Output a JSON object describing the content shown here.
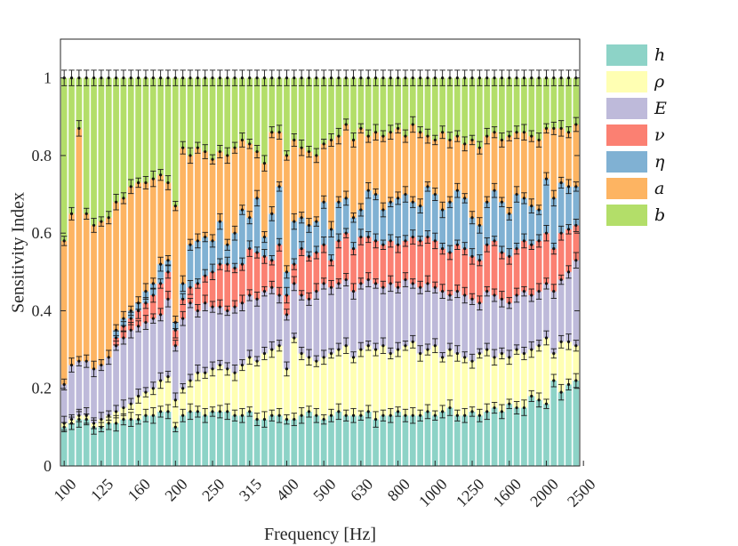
{
  "chart_data": {
    "type": "bar",
    "stacked": true,
    "title": "",
    "xlabel": "Frequency [Hz]",
    "ylabel": "Sensitivity Index",
    "ylim": [
      0,
      1.1
    ],
    "yticks": [
      0,
      0.2,
      0.4,
      0.6,
      0.8,
      1
    ],
    "ytick_labels": [
      "0",
      "0.2",
      "0.4",
      "0.6",
      "0.8",
      "1"
    ],
    "xtick_labels": [
      "100",
      "125",
      "160",
      "200",
      "250",
      "315",
      "400",
      "500",
      "630",
      "800",
      "1000",
      "1250",
      "1600",
      "2000",
      "2500"
    ],
    "bar_count": 70,
    "legend_position": "outside-right",
    "series": [
      {
        "name": "h",
        "color": "#8dd3c7",
        "cumulative_top": [
          0.1,
          0.11,
          0.12,
          0.12,
          0.1,
          0.1,
          0.11,
          0.11,
          0.12,
          0.12,
          0.12,
          0.13,
          0.13,
          0.14,
          0.14,
          0.1,
          0.13,
          0.14,
          0.14,
          0.13,
          0.14,
          0.14,
          0.14,
          0.13,
          0.13,
          0.14,
          0.12,
          0.12,
          0.13,
          0.13,
          0.12,
          0.12,
          0.13,
          0.14,
          0.13,
          0.12,
          0.13,
          0.14,
          0.13,
          0.13,
          0.13,
          0.14,
          0.12,
          0.13,
          0.13,
          0.14,
          0.13,
          0.13,
          0.13,
          0.14,
          0.13,
          0.14,
          0.15,
          0.13,
          0.13,
          0.14,
          0.13,
          0.14,
          0.15,
          0.14,
          0.16,
          0.15,
          0.15,
          0.18,
          0.17,
          0.16,
          0.22,
          0.19,
          0.21,
          0.22
        ]
      },
      {
        "name": "ρ",
        "color": "#ffffb3",
        "cumulative_top": [
          0.11,
          0.12,
          0.13,
          0.13,
          0.11,
          0.12,
          0.13,
          0.14,
          0.15,
          0.16,
          0.18,
          0.19,
          0.2,
          0.22,
          0.23,
          0.17,
          0.2,
          0.22,
          0.24,
          0.24,
          0.25,
          0.26,
          0.25,
          0.24,
          0.26,
          0.28,
          0.27,
          0.29,
          0.3,
          0.31,
          0.25,
          0.33,
          0.29,
          0.28,
          0.27,
          0.28,
          0.29,
          0.3,
          0.31,
          0.28,
          0.3,
          0.31,
          0.3,
          0.31,
          0.29,
          0.3,
          0.31,
          0.32,
          0.29,
          0.3,
          0.31,
          0.28,
          0.3,
          0.29,
          0.28,
          0.27,
          0.29,
          0.3,
          0.28,
          0.29,
          0.28,
          0.3,
          0.29,
          0.3,
          0.31,
          0.33,
          0.29,
          0.32,
          0.32,
          0.31
        ]
      },
      {
        "name": "E",
        "color": "#bebada",
        "cumulative_top": [
          0.21,
          0.26,
          0.27,
          0.27,
          0.25,
          0.26,
          0.28,
          0.31,
          0.33,
          0.35,
          0.36,
          0.37,
          0.38,
          0.39,
          0.43,
          0.31,
          0.38,
          0.42,
          0.4,
          0.42,
          0.41,
          0.41,
          0.4,
          0.41,
          0.42,
          0.44,
          0.43,
          0.45,
          0.46,
          0.44,
          0.39,
          0.47,
          0.44,
          0.43,
          0.45,
          0.47,
          0.46,
          0.47,
          0.48,
          0.45,
          0.47,
          0.48,
          0.47,
          0.46,
          0.47,
          0.46,
          0.48,
          0.47,
          0.46,
          0.47,
          0.46,
          0.45,
          0.44,
          0.45,
          0.44,
          0.43,
          0.42,
          0.45,
          0.44,
          0.43,
          0.42,
          0.44,
          0.45,
          0.44,
          0.45,
          0.47,
          0.45,
          0.48,
          0.5,
          0.53
        ]
      },
      {
        "name": "ν",
        "color": "#fb8072",
        "cumulative_top": [
          0.21,
          0.26,
          0.27,
          0.27,
          0.25,
          0.26,
          0.28,
          0.33,
          0.36,
          0.38,
          0.4,
          0.42,
          0.44,
          0.47,
          0.5,
          0.35,
          0.43,
          0.46,
          0.47,
          0.49,
          0.5,
          0.52,
          0.52,
          0.51,
          0.52,
          0.56,
          0.55,
          0.54,
          0.53,
          0.57,
          0.44,
          0.52,
          0.56,
          0.54,
          0.55,
          0.57,
          0.53,
          0.58,
          0.6,
          0.56,
          0.59,
          0.59,
          0.58,
          0.57,
          0.58,
          0.57,
          0.58,
          0.59,
          0.58,
          0.59,
          0.58,
          0.56,
          0.55,
          0.57,
          0.56,
          0.54,
          0.53,
          0.57,
          0.58,
          0.55,
          0.54,
          0.56,
          0.58,
          0.57,
          0.58,
          0.6,
          0.56,
          0.6,
          0.61,
          0.62
        ]
      },
      {
        "name": "η",
        "color": "#80b1d3",
        "cumulative_top": [
          0.21,
          0.26,
          0.27,
          0.27,
          0.25,
          0.26,
          0.28,
          0.35,
          0.38,
          0.4,
          0.42,
          0.45,
          0.47,
          0.52,
          0.53,
          0.37,
          0.47,
          0.57,
          0.58,
          0.59,
          0.58,
          0.63,
          0.57,
          0.6,
          0.66,
          0.64,
          0.69,
          0.59,
          0.65,
          0.72,
          0.5,
          0.63,
          0.64,
          0.62,
          0.63,
          0.68,
          0.61,
          0.68,
          0.69,
          0.64,
          0.66,
          0.71,
          0.7,
          0.66,
          0.68,
          0.69,
          0.7,
          0.68,
          0.67,
          0.72,
          0.7,
          0.66,
          0.68,
          0.71,
          0.69,
          0.64,
          0.62,
          0.68,
          0.71,
          0.68,
          0.65,
          0.7,
          0.69,
          0.67,
          0.66,
          0.74,
          0.69,
          0.73,
          0.72,
          0.72
        ]
      },
      {
        "name": "a",
        "color": "#fdb462",
        "cumulative_top": [
          0.58,
          0.65,
          0.87,
          0.65,
          0.62,
          0.63,
          0.64,
          0.68,
          0.69,
          0.72,
          0.73,
          0.73,
          0.74,
          0.75,
          0.73,
          0.67,
          0.82,
          0.8,
          0.82,
          0.81,
          0.79,
          0.81,
          0.8,
          0.82,
          0.84,
          0.83,
          0.81,
          0.78,
          0.86,
          0.86,
          0.8,
          0.84,
          0.82,
          0.81,
          0.8,
          0.83,
          0.84,
          0.85,
          0.88,
          0.84,
          0.87,
          0.85,
          0.86,
          0.85,
          0.86,
          0.87,
          0.85,
          0.88,
          0.86,
          0.85,
          0.84,
          0.86,
          0.84,
          0.85,
          0.83,
          0.84,
          0.82,
          0.85,
          0.86,
          0.84,
          0.85,
          0.86,
          0.86,
          0.85,
          0.84,
          0.87,
          0.87,
          0.87,
          0.86,
          0.88
        ]
      },
      {
        "name": "b",
        "color": "#b3de69",
        "cumulative_top": [
          1,
          1,
          1,
          1,
          1,
          1,
          1,
          1,
          1,
          1,
          1,
          1,
          1,
          1,
          1,
          1,
          1,
          1,
          1,
          1,
          1,
          1,
          1,
          1,
          1,
          1,
          1,
          1,
          1,
          1,
          1,
          1,
          1,
          1,
          1,
          1,
          1,
          1,
          1,
          1,
          1,
          1,
          1,
          1,
          1,
          1,
          1,
          1,
          1,
          1,
          1,
          1,
          1,
          1,
          1,
          1,
          1,
          1,
          1,
          1,
          1,
          1,
          1,
          1,
          1,
          1,
          1,
          1,
          1,
          1
        ]
      }
    ]
  }
}
